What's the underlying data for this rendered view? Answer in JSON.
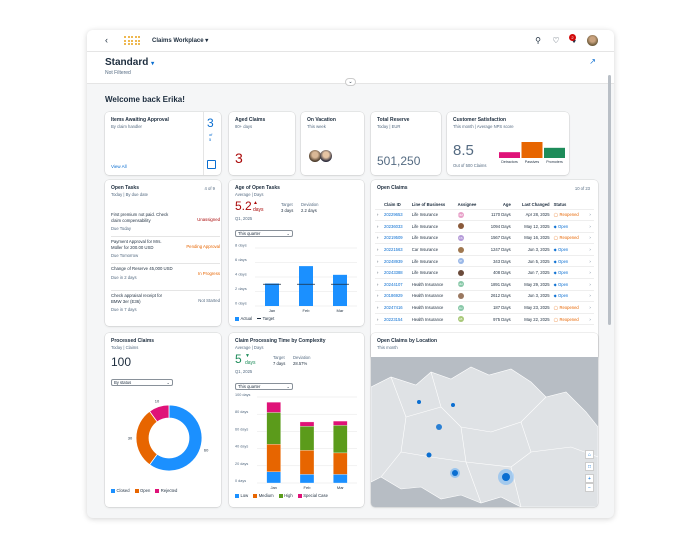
{
  "shell": {
    "app_title": "Claims Workplace",
    "notification_count": "2",
    "icons": [
      "back-icon",
      "search-icon",
      "bell-icon",
      "avatar"
    ]
  },
  "header": {
    "title": "Standard",
    "subtitle": "Not Filtered"
  },
  "welcome": "Welcome back Erika!",
  "kpis": {
    "awaiting": {
      "title": "Items Awaiting Approval",
      "subtitle": "By claim handler",
      "value": "3",
      "of_label": "of",
      "total": "5",
      "link": "View All"
    },
    "aged": {
      "title": "Aged Claims",
      "subtitle": "80+ days",
      "value": "3"
    },
    "vacation": {
      "title": "On Vacation",
      "subtitle": "This week"
    },
    "reserve": {
      "title": "Total Reserve",
      "subtitle": "Today | EUR",
      "value": "501,250"
    },
    "nps": {
      "title": "Customer Satisfaction",
      "subtitle": "This month | Average NPS score",
      "value": "8.5",
      "footer": "Out of 500 Claims",
      "labels": [
        "Detractors",
        "Passives",
        "Promoters"
      ]
    }
  },
  "tasks": {
    "title": "Open Tasks",
    "subtitle": "Today | By due date",
    "count": "4 of 9",
    "items": [
      {
        "text": "First premium not paid. Check claim compensability",
        "due": "Due Today",
        "status": "Unassigned"
      },
      {
        "text": "Payment Approval for Mrs. Müller for 200.00 USD",
        "due": "Due Tomorrow",
        "status": "Pending Approval"
      },
      {
        "text": "Change of Reserve 45,000 USD",
        "due": "Due in 2 days",
        "status": "In Progress"
      },
      {
        "text": "Check appraisal receipt for BMW 3er (E36)",
        "due": "Due in 7 days",
        "status": "Not Started"
      }
    ]
  },
  "age": {
    "title": "Age of Open Tasks",
    "subtitle": "Average | Days",
    "value": "5.2",
    "unit": "days",
    "period": "Q1, 2025",
    "target_label": "Target",
    "target_value": "3 days",
    "deviation_label": "Deviation",
    "deviation_value": "2.2 days",
    "select": "This quarter",
    "legend": [
      "Actual",
      "Target"
    ]
  },
  "claims": {
    "title": "Open Claims",
    "count": "10 of 23",
    "columns": [
      "Claim ID",
      "Line of Business",
      "Assignee",
      "Age",
      "Last Changed",
      "Status"
    ],
    "rows": [
      {
        "id": "20229653",
        "lob": "Life Insurance",
        "initials": "NM",
        "avc": "#e8a0c8",
        "age": "1170 Days",
        "changed": "Apr 28, 2025",
        "status": "Reopened"
      },
      {
        "id": "20236033",
        "lob": "Life Insurance",
        "initials": "",
        "avc": "#8a5a3a",
        "age": "1094 Days",
        "changed": "May 12, 2025",
        "status": "Open"
      },
      {
        "id": "20219509",
        "lob": "Life Insurance",
        "initials": "CS",
        "avc": "#b49ad8",
        "age": "1567 Days",
        "changed": "May 16, 2025",
        "status": "Reopened"
      },
      {
        "id": "20221563",
        "lob": "Car Insurance",
        "initials": "",
        "avc": "#a07850",
        "age": "1247 Days",
        "changed": "Jun 3, 2025",
        "status": "Open"
      },
      {
        "id": "20248939",
        "lob": "Life Insurance",
        "initials": "IP",
        "avc": "#9ab8e8",
        "age": "343 Days",
        "changed": "Jun 5, 2025",
        "status": "Open"
      },
      {
        "id": "20243388",
        "lob": "Life Insurance",
        "initials": "",
        "avc": "#6a4a3a",
        "age": "408 Days",
        "changed": "Jun 7, 2025",
        "status": "Open"
      },
      {
        "id": "20244107",
        "lob": "Health Insurance",
        "initials": "HH",
        "avc": "#88c8a8",
        "age": "1891 Days",
        "changed": "May 29, 2025",
        "status": "Open"
      },
      {
        "id": "20186929",
        "lob": "Health Insurance",
        "initials": "",
        "avc": "#9a7860",
        "age": "2612 Days",
        "changed": "Jun 3, 2025",
        "status": "Open"
      },
      {
        "id": "20247416",
        "lob": "Health Insurance",
        "initials": "LH",
        "avc": "#88c8a8",
        "age": "187 Days",
        "changed": "May 23, 2025",
        "status": "Reopened"
      },
      {
        "id": "20223154",
        "lob": "Health Insurance",
        "initials": "LB",
        "avc": "#a8c878",
        "age": "975 Days",
        "changed": "May 22, 2025",
        "status": "Reopened"
      }
    ]
  },
  "processed": {
    "title": "Processed Claims",
    "subtitle": "Today | Claims",
    "value": "100",
    "select": "By status"
  },
  "complexity": {
    "title": "Claim Processing Time by Complexity",
    "subtitle": "Average | Days",
    "value": "5",
    "unit": "days",
    "period": "Q1, 2025",
    "target_label": "Target",
    "target_value": "7 days",
    "deviation_label": "Deviation",
    "deviation_value": "28.57%",
    "select": "This quarter"
  },
  "map": {
    "title": "Open Claims by Location",
    "subtitle": "This month",
    "controls": [
      "home-icon",
      "square-icon",
      "+",
      "−"
    ]
  },
  "chart_data": [
    {
      "type": "bar",
      "title": "Age of Open Tasks",
      "categories": [
        "Jan",
        "Feb",
        "Mar"
      ],
      "series": [
        {
          "name": "Actual",
          "values": [
            3.1,
            5.5,
            4.3
          ]
        },
        {
          "name": "Target",
          "values": [
            3,
            3,
            3
          ]
        }
      ],
      "yticks": [
        "0 days",
        "2 days",
        "4 days",
        "6 days",
        "8 days"
      ],
      "ylim": [
        0,
        8
      ],
      "colors": [
        "#1b90ff",
        "#1d2d3e"
      ]
    },
    {
      "type": "pie",
      "title": "Processed Claims",
      "categories": [
        "Closed",
        "Open",
        "Rejected"
      ],
      "values": [
        60,
        30,
        10
      ],
      "colors": [
        "#1b90ff",
        "#e76500",
        "#df1278"
      ]
    },
    {
      "type": "bar",
      "title": "Claim Processing Time by Complexity",
      "categories": [
        "Jan",
        "Feb",
        "Mar"
      ],
      "series": [
        {
          "name": "Low",
          "values": [
            13,
            10,
            10
          ]
        },
        {
          "name": "Medium",
          "values": [
            32,
            28,
            25
          ]
        },
        {
          "name": "High",
          "values": [
            37,
            28,
            32
          ]
        },
        {
          "name": "Special Case",
          "values": [
            12,
            5,
            5
          ]
        }
      ],
      "yticks": [
        "0 days",
        "20 days",
        "40 days",
        "60 days",
        "80 days",
        "100 days"
      ],
      "ylim": [
        0,
        100
      ],
      "colors": [
        "#1b90ff",
        "#e76500",
        "#5b9b1b",
        "#df1278"
      ]
    },
    {
      "type": "bar",
      "title": "Customer Satisfaction",
      "categories": [
        "Detractors",
        "Passives",
        "Promoters"
      ],
      "values": [
        8,
        22,
        14
      ],
      "colors": [
        "#df1278",
        "#e76500",
        "#1e8c5a"
      ]
    }
  ]
}
